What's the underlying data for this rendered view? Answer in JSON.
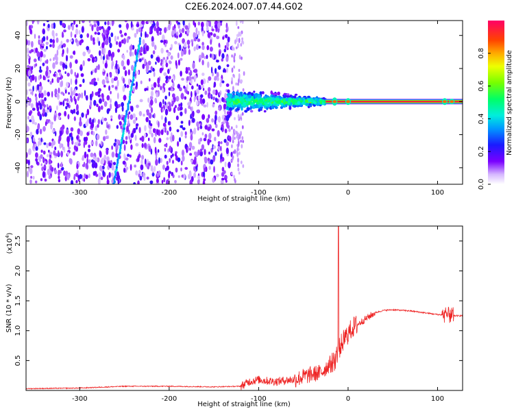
{
  "figure": {
    "title": "C2E6.2024.007.07.44.G02"
  },
  "chart_data": [
    {
      "type": "heatmap",
      "xlabel": "Height of straight line (km)",
      "ylabel": "Frequency (Hz)",
      "xlim": [
        -360,
        128
      ],
      "ylim": [
        -50,
        49
      ],
      "xticks": [
        -300,
        -200,
        -100,
        0,
        100
      ],
      "yticks": [
        -40,
        -20,
        0,
        20,
        40
      ],
      "colorbar": {
        "label": "Normalized spectral amplitude",
        "ticks": [
          "0.0",
          "0.2",
          "0.4",
          "0.6",
          "0.8"
        ],
        "tick_values": [
          0.0,
          0.2,
          0.4,
          0.6,
          0.8
        ],
        "range": [
          0,
          1
        ]
      },
      "features": [
        {
          "region": "noise",
          "x_range": [
            -360,
            -130
          ],
          "y_range": [
            -50,
            49
          ],
          "amplitude": 0.1
        },
        {
          "region": "diagonal streak",
          "x": [
            -262,
            -232
          ],
          "y": [
            -50,
            38
          ],
          "amplitude": 0.3
        },
        {
          "region": "scatter",
          "x_range": [
            -135,
            -25
          ],
          "y_range": [
            -12,
            12
          ],
          "amplitude": 0.45
        },
        {
          "region": "carrier",
          "x_range": [
            -25,
            128
          ],
          "y": 0,
          "amplitude": 1.0
        }
      ],
      "grid": false
    },
    {
      "type": "line",
      "xlabel": "Height of straight line (km)",
      "ylabel": "SNR (10 * v/v)",
      "y_multiplier_label": "(x10",
      "y_multiplier_exp": "4",
      "y_multiplier_close": ")",
      "xlim": [
        -360,
        128
      ],
      "ylim": [
        0,
        2.75
      ],
      "xticks": [
        -300,
        -200,
        -100,
        0,
        100
      ],
      "yticks": [
        "0.5",
        "1.0",
        "1.5",
        "2.0",
        "2.5"
      ],
      "ytick_values": [
        0.5,
        1.0,
        1.5,
        2.0,
        2.5
      ],
      "series": [
        {
          "color": "#ee2222",
          "x": [
            -360,
            -300,
            -250,
            -200,
            -150,
            -120,
            -110,
            -100,
            -90,
            -80,
            -70,
            -60,
            -50,
            -40,
            -30,
            -20,
            -15,
            -10,
            -5,
            0,
            5,
            10,
            15,
            20,
            30,
            40,
            50,
            60,
            70,
            80,
            90,
            100,
            110,
            120,
            128
          ],
          "y": [
            0.03,
            0.04,
            0.07,
            0.07,
            0.06,
            0.07,
            0.15,
            0.18,
            0.16,
            0.15,
            0.17,
            0.18,
            0.23,
            0.27,
            0.3,
            0.45,
            0.5,
            0.7,
            0.85,
            0.95,
            1.05,
            1.1,
            1.15,
            1.2,
            1.3,
            1.34,
            1.35,
            1.34,
            1.33,
            1.31,
            1.29,
            1.27,
            1.26,
            1.25,
            1.25
          ]
        }
      ],
      "annotations": [
        {
          "x": -11,
          "y": 2.75,
          "note": "spike"
        },
        {
          "x": 112,
          "y": 1.55,
          "note": "burst"
        }
      ],
      "grid": false
    }
  ]
}
